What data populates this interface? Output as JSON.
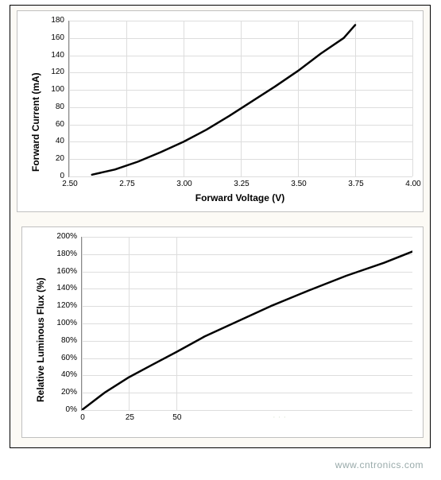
{
  "outer": {
    "background": "#fcfaf5",
    "border_color": "#000000"
  },
  "chart1": {
    "type": "line",
    "xlabel": "Forward Voltage (V)",
    "ylabel": "Forward Current (mA)",
    "label_fontsize": 12,
    "tick_fontsize": 10,
    "xlim": [
      2.5,
      4.0
    ],
    "ylim": [
      0,
      180
    ],
    "xticks": [
      2.5,
      2.75,
      3.0,
      3.25,
      3.5,
      3.75,
      4.0
    ],
    "xtick_labels": [
      "2.50",
      "2.75",
      "3.00",
      "3.25",
      "3.50",
      "3.75",
      "4.00"
    ],
    "yticks": [
      0,
      20,
      40,
      60,
      80,
      100,
      120,
      140,
      160,
      180
    ],
    "ytick_labels": [
      "0",
      "20",
      "40",
      "60",
      "80",
      "100",
      "120",
      "140",
      "160",
      "180"
    ],
    "background_color": "#ffffff",
    "grid_color": "#dddddd",
    "axis_color": "#888888",
    "line_color": "#000000",
    "line_width": 2.5,
    "series": [
      {
        "x": 2.6,
        "y": 2
      },
      {
        "x": 2.7,
        "y": 8
      },
      {
        "x": 2.8,
        "y": 17
      },
      {
        "x": 2.9,
        "y": 28
      },
      {
        "x": 3.0,
        "y": 40
      },
      {
        "x": 3.1,
        "y": 54
      },
      {
        "x": 3.2,
        "y": 70
      },
      {
        "x": 3.3,
        "y": 87
      },
      {
        "x": 3.4,
        "y": 104
      },
      {
        "x": 3.5,
        "y": 122
      },
      {
        "x": 3.6,
        "y": 142
      },
      {
        "x": 3.7,
        "y": 160
      },
      {
        "x": 3.75,
        "y": 175
      }
    ]
  },
  "chart2": {
    "type": "line",
    "xlabel": "",
    "ylabel": "Relative Luminous Flux (%)",
    "label_fontsize": 12,
    "tick_fontsize": 10,
    "xlim": [
      0,
      175
    ],
    "ylim": [
      0,
      200
    ],
    "xticks": [
      0,
      25,
      50
    ],
    "xtick_labels": [
      "0",
      "25",
      "50"
    ],
    "yticks": [
      0,
      20,
      40,
      60,
      80,
      100,
      120,
      140,
      160,
      180,
      200
    ],
    "ytick_labels": [
      "0%",
      "20%",
      "40%",
      "60%",
      "80%",
      "100%",
      "120%",
      "140%",
      "160%",
      "180%",
      "200%"
    ],
    "background_color": "#ffffff",
    "grid_color": "#dddddd",
    "axis_color": "#888888",
    "line_color": "#000000",
    "line_width": 2.5,
    "series": [
      {
        "x": 0,
        "y": 0
      },
      {
        "x": 12,
        "y": 20
      },
      {
        "x": 25,
        "y": 38
      },
      {
        "x": 37,
        "y": 52
      },
      {
        "x": 50,
        "y": 67
      },
      {
        "x": 65,
        "y": 85
      },
      {
        "x": 80,
        "y": 100
      },
      {
        "x": 100,
        "y": 120
      },
      {
        "x": 120,
        "y": 138
      },
      {
        "x": 140,
        "y": 155
      },
      {
        "x": 160,
        "y": 170
      },
      {
        "x": 175,
        "y": 183
      }
    ]
  },
  "watermark": {
    "text": "www.cntronics.com",
    "color": "#99aaaa",
    "fontsize": 12
  }
}
